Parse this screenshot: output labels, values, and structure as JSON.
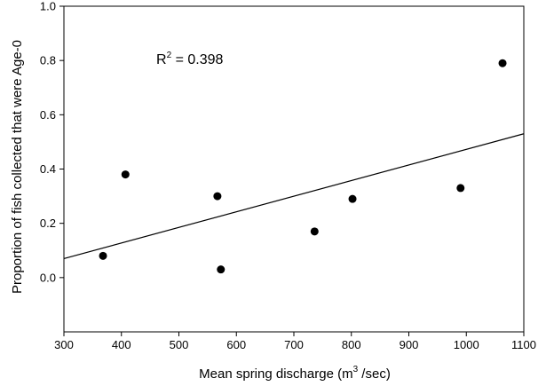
{
  "chart_data": {
    "type": "scatter",
    "xlabel": "Mean spring discharge (m",
    "xlabel_superscript": "3",
    "xlabel_suffix": " /sec)",
    "ylabel": "Proportion of fish collected that were Age-0",
    "xlim": [
      300,
      1100
    ],
    "ylim": [
      -0.2,
      1.0
    ],
    "x_ticks": [
      "300",
      "400",
      "500",
      "600",
      "700",
      "800",
      "900",
      "1000",
      "1100"
    ],
    "y_ticks": [
      "0.0",
      "0.2",
      "0.4",
      "0.6",
      "0.8",
      "1.0"
    ],
    "x_tick_values": [
      300,
      400,
      500,
      600,
      700,
      800,
      900,
      1000,
      1100
    ],
    "y_tick_values": [
      0.0,
      0.2,
      0.4,
      0.6,
      0.8,
      1.0
    ],
    "points": [
      {
        "x": 368,
        "y": 0.08
      },
      {
        "x": 407,
        "y": 0.38
      },
      {
        "x": 567,
        "y": 0.3
      },
      {
        "x": 573,
        "y": 0.03
      },
      {
        "x": 736,
        "y": 0.17
      },
      {
        "x": 802,
        "y": 0.29
      },
      {
        "x": 990,
        "y": 0.33
      },
      {
        "x": 1063,
        "y": 0.79
      }
    ],
    "trendline": {
      "x": [
        300,
        1100
      ],
      "y": [
        0.07,
        0.53
      ]
    },
    "annotation": {
      "prefix": "R",
      "superscript": "2",
      "suffix": " = 0.398"
    },
    "grid": false,
    "legend": "none"
  }
}
